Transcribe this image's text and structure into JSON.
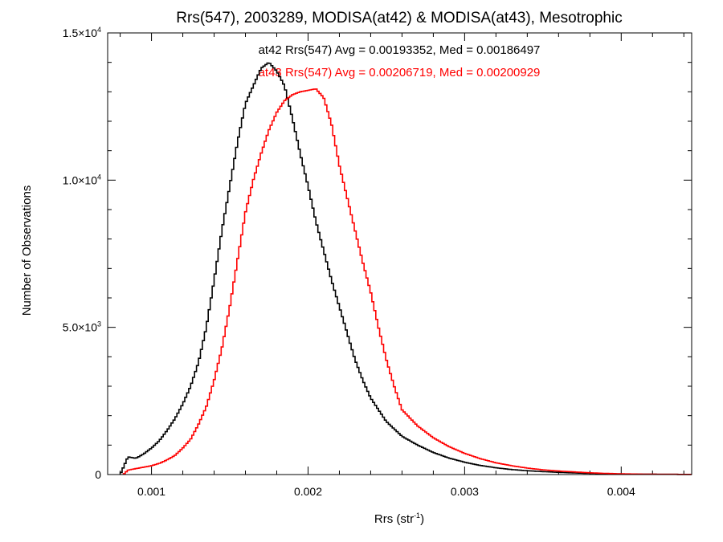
{
  "chart_data": {
    "type": "line",
    "title": "Rrs(547), 2003289, MODISA(at42) & MODISA(at43), Mesotrophic",
    "xlabel": "Rrs (str",
    "xlabel_sup": "-1",
    "xlabel_tail": ")",
    "ylabel": "Number of Observations",
    "xlim": [
      0.00072,
      0.00445
    ],
    "ylim": [
      0,
      15000
    ],
    "grid": false,
    "x_ticks": [
      {
        "value": 0.001,
        "label": "0.001"
      },
      {
        "value": 0.002,
        "label": "0.002"
      },
      {
        "value": 0.003,
        "label": "0.003"
      },
      {
        "value": 0.004,
        "label": "0.004"
      }
    ],
    "y_ticks": [
      {
        "value": 0,
        "mant": "0",
        "exp": ""
      },
      {
        "value": 5000,
        "mant": "5.0×10",
        "exp": "3"
      },
      {
        "value": 10000,
        "mant": "1.0×10",
        "exp": "4"
      },
      {
        "value": 15000,
        "mant": "1.5×10",
        "exp": "4"
      }
    ],
    "annotations": [
      {
        "text": "at42 Rrs(547) Avg = 0.00193352, Med = 0.00186497",
        "color": "#000000"
      },
      {
        "text": "at43 Rrs(547) Avg = 0.00206719, Med = 0.00200929",
        "color": "#ff0000"
      }
    ],
    "series": [
      {
        "color": "#000000",
        "x": [
          0.0008,
          0.00085,
          0.0009,
          0.00095,
          0.001,
          0.00105,
          0.0011,
          0.00115,
          0.0012,
          0.00125,
          0.0013,
          0.00135,
          0.0014,
          0.00145,
          0.0015,
          0.00155,
          0.0016,
          0.00165,
          0.0017,
          0.00175,
          0.0018,
          0.00185,
          0.0019,
          0.00195,
          0.002,
          0.00205,
          0.0021,
          0.00215,
          0.0022,
          0.00225,
          0.0023,
          0.00235,
          0.0024,
          0.00245,
          0.0025,
          0.0026,
          0.0027,
          0.0028,
          0.0029,
          0.003,
          0.0031,
          0.0032,
          0.0033,
          0.0034,
          0.0035,
          0.0036,
          0.0037,
          0.0038,
          0.0039,
          0.004,
          0.0042,
          0.00445
        ],
        "values": [
          0,
          600,
          550,
          700,
          900,
          1150,
          1500,
          1900,
          2400,
          3000,
          3800,
          5000,
          6600,
          8300,
          9800,
          11300,
          12600,
          13200,
          13800,
          14000,
          13700,
          13200,
          12100,
          10900,
          9800,
          8600,
          7600,
          6600,
          5700,
          4800,
          3900,
          3200,
          2600,
          2200,
          1800,
          1300,
          1000,
          750,
          560,
          420,
          310,
          230,
          170,
          130,
          100,
          75,
          55,
          40,
          30,
          20,
          10,
          5
        ]
      },
      {
        "color": "#ff0000",
        "x": [
          0.00082,
          0.00085,
          0.0009,
          0.00095,
          0.001,
          0.00105,
          0.0011,
          0.00115,
          0.0012,
          0.00125,
          0.0013,
          0.00135,
          0.0014,
          0.00145,
          0.0015,
          0.00155,
          0.0016,
          0.00165,
          0.0017,
          0.00175,
          0.0018,
          0.00185,
          0.0019,
          0.00195,
          0.002,
          0.00205,
          0.0021,
          0.00215,
          0.0022,
          0.00225,
          0.0023,
          0.00235,
          0.0024,
          0.00245,
          0.0025,
          0.00255,
          0.0026,
          0.0027,
          0.0028,
          0.0029,
          0.003,
          0.0031,
          0.0032,
          0.0033,
          0.0034,
          0.0035,
          0.0036,
          0.0037,
          0.0038,
          0.0039,
          0.004,
          0.0042,
          0.00445
        ],
        "values": [
          0,
          150,
          200,
          250,
          300,
          380,
          500,
          650,
          900,
          1200,
          1700,
          2300,
          3200,
          4300,
          5700,
          7300,
          8900,
          10000,
          10900,
          11700,
          12300,
          12700,
          12900,
          13000,
          13050,
          13100,
          12800,
          11900,
          10500,
          9400,
          8300,
          7200,
          6200,
          5000,
          3900,
          3000,
          2200,
          1650,
          1250,
          950,
          720,
          540,
          400,
          300,
          220,
          160,
          120,
          90,
          60,
          40,
          25,
          10,
          5
        ]
      }
    ]
  }
}
